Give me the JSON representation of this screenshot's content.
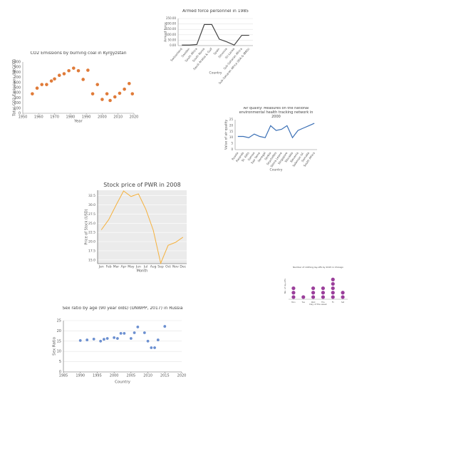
{
  "chart_data": [
    {
      "type": "line",
      "title": "Armed force personnel in 1985",
      "y_label": "Armed force",
      "x_label": "Country",
      "categories": [
        "Switzerland",
        "Sweden",
        "South Africa",
        "South Korea",
        "Saudi Arabia & Gulf",
        "Spain",
        "Slovenia",
        "Sri Lanka",
        "Sub-Saharan Africa",
        "Sub-Saharan Africa (IDA & IBRD)"
      ],
      "values": [
        5,
        5,
        10,
        195,
        195,
        60,
        35,
        5,
        95,
        95
      ],
      "color": "#444444",
      "ylim": [
        0,
        250
      ],
      "yticks": [
        {
          "value": 0,
          "label": "0.00"
        },
        {
          "value": 50,
          "label": "50.00"
        },
        {
          "value": 100,
          "label": "100.00"
        },
        {
          "value": 150,
          "label": "150.00"
        },
        {
          "value": 200,
          "label": "200.00"
        },
        {
          "value": 250,
          "label": "250.00"
        }
      ],
      "grid": true
    },
    {
      "type": "scatter",
      "title": "CO2 Emissions by burning coal in Kyrgyzstan",
      "y_label": "Total CO2 Emissions (MtCO2)",
      "x_label": "Year",
      "x": [
        1956,
        1959,
        1962,
        1965,
        1968,
        1970,
        1973,
        1976,
        1979,
        1982,
        1985,
        1988,
        1991,
        1994,
        1997,
        2000,
        2003,
        2005,
        2008,
        2011,
        2014,
        2017,
        2019
      ],
      "values": [
        380,
        490,
        560,
        560,
        630,
        670,
        740,
        770,
        830,
        880,
        830,
        660,
        840,
        380,
        560,
        270,
        380,
        250,
        320,
        390,
        470,
        580,
        380
      ],
      "color": "#e07b39",
      "xlim": [
        1950,
        2020
      ],
      "xticks": [
        1950,
        1960,
        1970,
        1980,
        1990,
        2000,
        2010,
        2020
      ],
      "ylim": [
        0,
        1000
      ],
      "yticks": [
        0,
        100,
        200,
        300,
        400,
        500,
        600,
        700,
        800,
        900,
        1000
      ],
      "grid": false
    },
    {
      "type": "line",
      "title": "Air quality: Measures on the national environmental health tracking network in 2000",
      "y_label": "Value of air quality",
      "x_label": "Country",
      "categories": [
        "Russia",
        "Rwanda",
        "St. Kitts",
        "Samoa",
        "Sao Tome",
        "Senegal",
        "Serbia",
        "Seychelles",
        "Sierra Leone",
        "Singapore",
        "Slovakia",
        "Slovenia",
        "Solomon Isl.",
        "Somalia",
        "South Africa"
      ],
      "values": [
        11,
        11,
        10,
        13,
        11,
        10,
        20,
        16,
        17,
        20,
        10,
        16,
        18,
        20,
        22
      ],
      "color": "#3a6fb5",
      "ylim": [
        0,
        25
      ],
      "yticks": [
        0,
        5,
        10,
        15,
        20,
        25
      ],
      "grid": false
    },
    {
      "type": "line",
      "title": "Stock price of PWR in 2008",
      "y_label": "Price of Stock (USD)",
      "x_label": "Month",
      "categories": [
        "Jan",
        "Feb",
        "Mar",
        "Apr",
        "May",
        "Jun",
        "Jul",
        "Aug",
        "Sep",
        "Oct",
        "Nov",
        "Dec"
      ],
      "values": [
        23.2,
        26,
        30,
        33.8,
        32.3,
        33,
        28.8,
        23.1,
        14.1,
        19,
        19.8,
        21.2
      ],
      "color": "#f5b13d",
      "ylim": [
        14,
        34
      ],
      "yticks": [
        {
          "value": 15,
          "label": "15.0"
        },
        {
          "value": 17.5,
          "label": "17.5"
        },
        {
          "value": 20,
          "label": "20.0"
        },
        {
          "value": 22.5,
          "label": "22.5"
        },
        {
          "value": 25,
          "label": "25.0"
        },
        {
          "value": 27.5,
          "label": "27.5"
        },
        {
          "value": 30,
          "label": "30.0"
        },
        {
          "value": 32.5,
          "label": "32.5"
        }
      ],
      "grid": true
    },
    {
      "type": "dot",
      "title": "Number of clothing lay-offs by 2015 in Chicago",
      "y_label": "No. of lay-offs",
      "x_label": "Day of the week",
      "categories": [
        "Mon",
        "Tue",
        "Wed",
        "Thu",
        "Fri",
        "Sat"
      ],
      "values": [
        3,
        1,
        3,
        3,
        5,
        2
      ],
      "color": "#9b3f9b"
    },
    {
      "type": "scatter",
      "title": "Sex ratio by age (90 year olds) (UNWPP, 2017) in Russia",
      "y_label": "Sex Ratio",
      "x_label": "Country",
      "x": [
        1990,
        1992,
        1994,
        1996,
        1997,
        1998,
        2000,
        2001,
        2002,
        2003,
        2005,
        2006,
        2007,
        2009,
        2010,
        2011,
        2012,
        2013,
        2015
      ],
      "values": [
        15.3,
        15.6,
        16,
        15,
        15.9,
        16.3,
        16.7,
        16.3,
        18.8,
        18.8,
        16.3,
        19.1,
        21.9,
        19.1,
        15,
        11.8,
        11.8,
        15.6,
        22.2
      ],
      "color": "#6b8fd0",
      "xlim": [
        1985,
        2020
      ],
      "xticks": [
        1985,
        1990,
        1995,
        2000,
        2005,
        2010,
        2015,
        2020
      ],
      "ylim": [
        0,
        25
      ],
      "yticks": [
        0,
        5,
        10,
        15,
        20,
        25
      ],
      "grid": true
    }
  ]
}
